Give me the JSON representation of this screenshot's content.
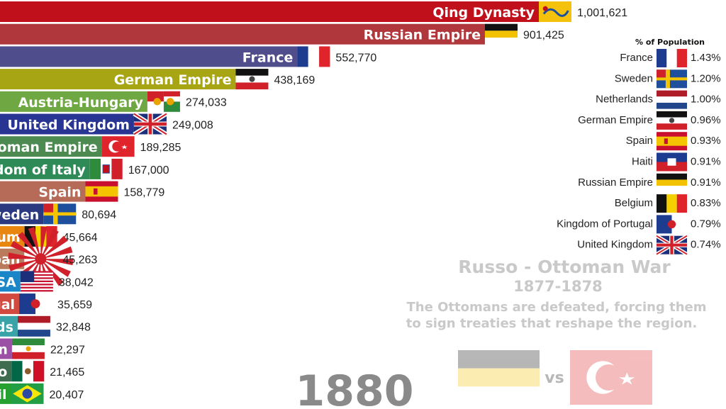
{
  "chart_data": {
    "type": "bar",
    "orientation": "horizontal",
    "categories": [
      "Qing Dynasty",
      "Russian Empire",
      "France",
      "German Empire",
      "Austria-Hungary",
      "United Kingdom",
      "Ottoman Empire",
      "Kingdom of Italy",
      "Spain",
      "Sweden",
      "Belgium",
      "Empire of Japan",
      "USA",
      "Kingdom of Portugal",
      "Netherlands",
      "Qajar Iran",
      "Mexico",
      "Empire of Brazil"
    ],
    "values": [
      1001621,
      901425,
      552770,
      438169,
      274033,
      249008,
      189285,
      167000,
      158779,
      80694,
      45664,
      45263,
      38042,
      35659,
      32848,
      22297,
      21465,
      20407
    ],
    "value_labels": [
      "1,001,621",
      "901,425",
      "552,770",
      "438,169",
      "274,033",
      "249,008",
      "189,285",
      "167,000",
      "158,779",
      "80,694",
      "45,664",
      "45,263",
      "38,042",
      "35,659",
      "32,848",
      "22,297",
      "21,465",
      "20,407"
    ],
    "bar_colors": [
      "#c0101b",
      "#b0383c",
      "#4f4d8c",
      "#a8a515",
      "#6fa842",
      "#283593",
      "#4c8a51",
      "#2e8b57",
      "#b56b58",
      "#2b3a80",
      "#e8860f",
      "#b97b5c",
      "#1a86c7",
      "#d24a3f",
      "#3aa3a8",
      "#9b4fa5",
      "#3f6b4f",
      "#26a02f"
    ],
    "flags": [
      "qing",
      "russia",
      "france",
      "germany",
      "austria",
      "uk",
      "ottoman",
      "italy",
      "spain",
      "sweden",
      "belgium",
      "japan",
      "usa",
      "portugal",
      "netherlands",
      "iran",
      "mexico",
      "brazil"
    ],
    "year": "1880"
  },
  "population_panel": {
    "title": "% of Population",
    "items": [
      {
        "name": "France",
        "pct": "1.43%",
        "flag": "france"
      },
      {
        "name": "Sweden",
        "pct": "1.20%",
        "flag": "sweden"
      },
      {
        "name": "Netherlands",
        "pct": "1.00%",
        "flag": "netherlands"
      },
      {
        "name": "German Empire",
        "pct": "0.96%",
        "flag": "germany"
      },
      {
        "name": "Spain",
        "pct": "0.93%",
        "flag": "spain"
      },
      {
        "name": "Haiti",
        "pct": "0.91%",
        "flag": "haiti"
      },
      {
        "name": "Russian Empire",
        "pct": "0.91%",
        "flag": "russia"
      },
      {
        "name": "Belgium",
        "pct": "0.83%",
        "flag": "belgium"
      },
      {
        "name": "Kingdom of Portugal",
        "pct": "0.79%",
        "flag": "portugal"
      },
      {
        "name": "United Kingdom",
        "pct": "0.74%",
        "flag": "uk"
      }
    ]
  },
  "event": {
    "title": "Russo - Ottoman War",
    "years": "1877-1878",
    "description_line1": "The Ottomans are defeated, forcing them",
    "description_line2": "to sign treaties that reshape the region.",
    "vs_label": "vs",
    "left_flag": "russia",
    "right_flag": "ottoman"
  }
}
